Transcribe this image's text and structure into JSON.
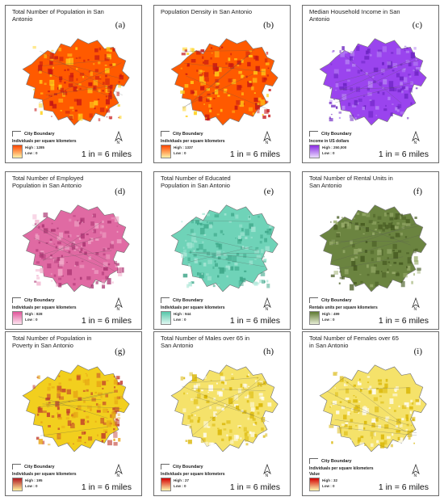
{
  "figure": {
    "scale_text": "1 in = 6 miles",
    "boundary_label": "City Boundary",
    "panels": [
      {
        "label": "(a)",
        "title": "Total Number of Population in San Antonio",
        "units": "Individuals per square kilometers",
        "high": "High : 1285",
        "low": "Low : 0",
        "colors": [
          "#fff2a8",
          "#ff4500"
        ],
        "fill": "#ff5a00",
        "fill2": "#ffd21a",
        "dark": "#c41414"
      },
      {
        "label": "(b)",
        "title": "Population Density in San Antonio",
        "units": "Individuals per square kilometers",
        "high": "High : 1337",
        "low": "Low : 0",
        "colors": [
          "#fff2a8",
          "#ff4500"
        ],
        "fill": "#ff5a00",
        "fill2": "#ffd21a",
        "dark": "#c41414"
      },
      {
        "label": "(c)",
        "title": "Median Household Income in San Antonio",
        "units": "Income in US dollars",
        "high": "High : 250,000",
        "low": "Low : 0",
        "colors": [
          "#eadcff",
          "#8a2be2"
        ],
        "fill": "#9a44ee",
        "fill2": "#b98af5",
        "dark": "#6a22c0"
      },
      {
        "label": "(d)",
        "title": "Total Number of Employed Population in San Antonio",
        "units": "Individuals per square kilometers",
        "high": "High : 828",
        "low": "Low : 0",
        "colors": [
          "#fde4ef",
          "#e0559a"
        ],
        "fill": "#e06aa3",
        "fill2": "#f0a8c8",
        "dark": "#a83270"
      },
      {
        "label": "(e)",
        "title": "Total Number of Educated Population in San Antonio",
        "units": "Individuals per square kilometers",
        "high": "High : 944",
        "low": "Low : 0",
        "colors": [
          "#e0f7f1",
          "#56c7a9"
        ],
        "fill": "#6fd3b8",
        "fill2": "#a6e6d5",
        "dark": "#3aa486"
      },
      {
        "label": "(f)",
        "title": "Total Number of Rental Units in San Antonio",
        "units": "Rentals units per square kilometers",
        "high": "High : 499",
        "low": "Low : 0",
        "colors": [
          "#e6edd5",
          "#5f7a32"
        ],
        "fill": "#6b8440",
        "fill2": "#9aad6c",
        "dark": "#44581f"
      },
      {
        "label": "(g)",
        "title": "Total Number of Population in Poverty in San Antonio",
        "units": "Individuals per square kilometers",
        "high": "High : 195",
        "low": "Low : 0",
        "colors": [
          "#fff3a0",
          "#b0171f"
        ],
        "fill": "#f2cf1e",
        "fill2": "#e6a315",
        "dark": "#c0392b"
      },
      {
        "label": "(h)",
        "title": "Total Number of Males over 65 in San Antonio",
        "units": "Individuals per square kilometers",
        "high": "High : 27",
        "low": "Low : 0",
        "colors": [
          "#fff8b0",
          "#d40000"
        ],
        "fill": "#f5e26a",
        "fill2": "#ffffff",
        "dark": "#d8b400"
      },
      {
        "label": "(i)",
        "title": "Total Number of Females over 65 in San Antonio",
        "units": "Individuals per square kilometers",
        "unit_extra": "Value",
        "high": "High : 32",
        "low": "Low : 0",
        "colors": [
          "#fff8b0",
          "#d40000"
        ],
        "fill": "#f5e26a",
        "fill2": "#ffffff",
        "dark": "#d8b400"
      }
    ]
  }
}
